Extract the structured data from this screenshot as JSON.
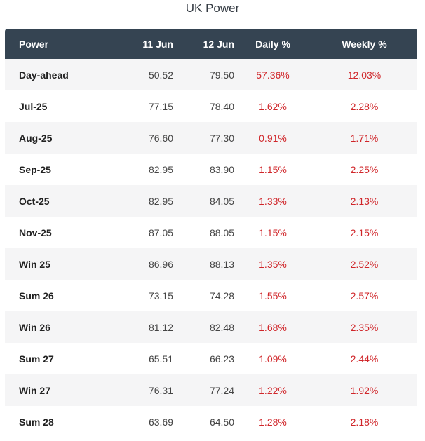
{
  "title": "UK Power",
  "headers": {
    "name": "Power",
    "date1": "11 Jun",
    "date2": "12 Jun",
    "daily": "Daily %",
    "weekly": "Weekly %"
  },
  "colors": {
    "header_bg": "#354452",
    "positive_change": "#d0262a"
  },
  "rows": [
    {
      "name": "Day-ahead",
      "d1": "50.52",
      "d2": "79.50",
      "daily": "57.36%",
      "weekly": "12.03%"
    },
    {
      "name": "Jul-25",
      "d1": "77.15",
      "d2": "78.40",
      "daily": "1.62%",
      "weekly": "2.28%"
    },
    {
      "name": "Aug-25",
      "d1": "76.60",
      "d2": "77.30",
      "daily": "0.91%",
      "weekly": "1.71%"
    },
    {
      "name": "Sep-25",
      "d1": "82.95",
      "d2": "83.90",
      "daily": "1.15%",
      "weekly": "2.25%"
    },
    {
      "name": "Oct-25",
      "d1": "82.95",
      "d2": "84.05",
      "daily": "1.33%",
      "weekly": "2.13%"
    },
    {
      "name": "Nov-25",
      "d1": "87.05",
      "d2": "88.05",
      "daily": "1.15%",
      "weekly": "2.15%"
    },
    {
      "name": "Win 25",
      "d1": "86.96",
      "d2": "88.13",
      "daily": "1.35%",
      "weekly": "2.52%"
    },
    {
      "name": "Sum 26",
      "d1": "73.15",
      "d2": "74.28",
      "daily": "1.55%",
      "weekly": "2.57%"
    },
    {
      "name": "Win 26",
      "d1": "81.12",
      "d2": "82.48",
      "daily": "1.68%",
      "weekly": "2.35%"
    },
    {
      "name": "Sum 27",
      "d1": "65.51",
      "d2": "66.23",
      "daily": "1.09%",
      "weekly": "2.44%"
    },
    {
      "name": "Win 27",
      "d1": "76.31",
      "d2": "77.24",
      "daily": "1.22%",
      "weekly": "1.92%"
    },
    {
      "name": "Sum 28",
      "d1": "63.69",
      "d2": "64.50",
      "daily": "1.28%",
      "weekly": "2.18%"
    }
  ]
}
